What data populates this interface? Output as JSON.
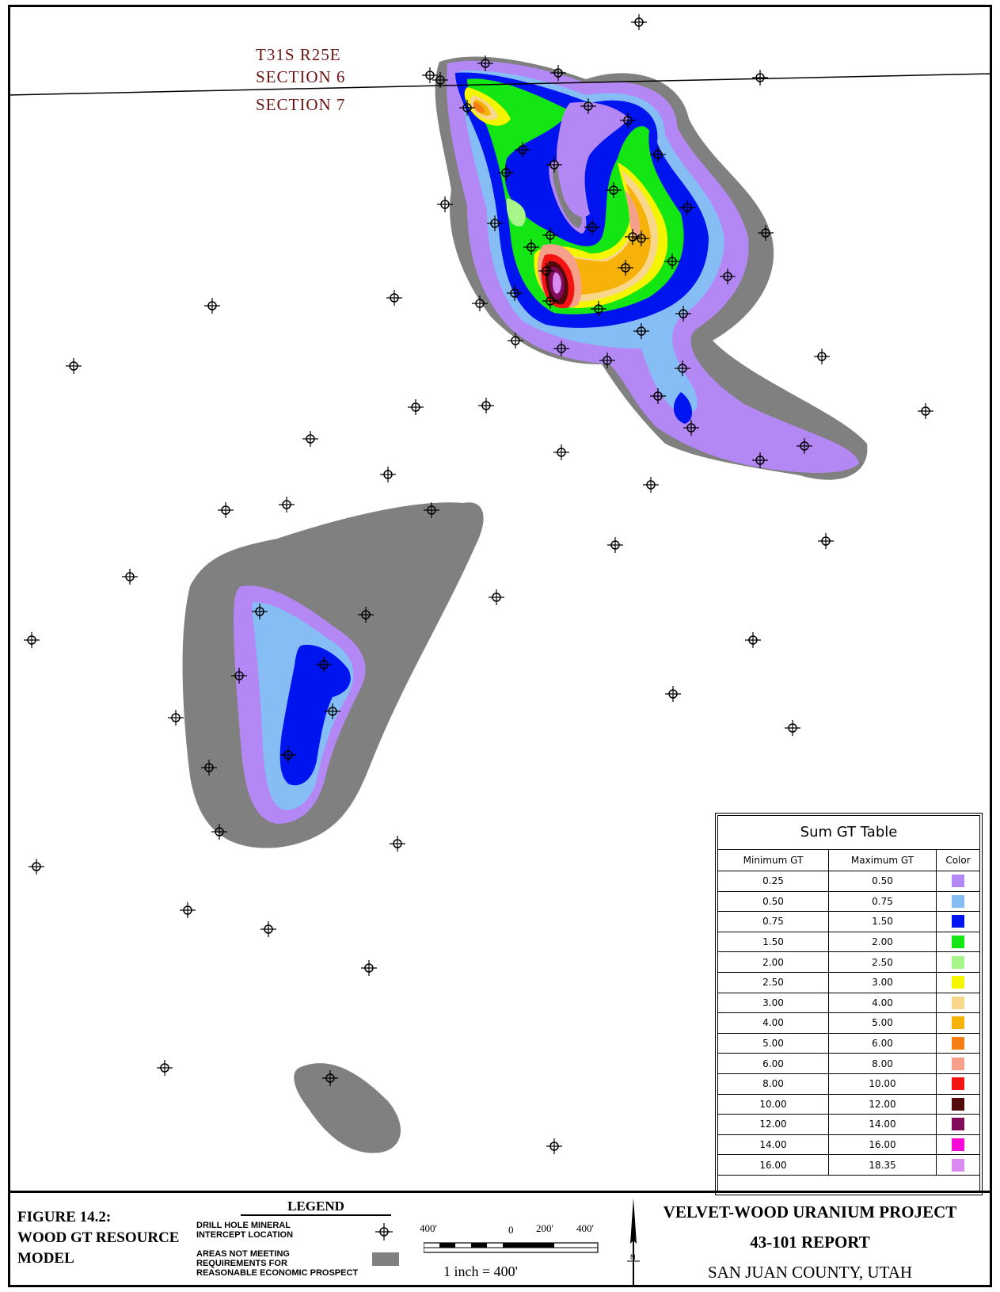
{
  "section_labels": {
    "township": "T31S R25E",
    "section_a": "SECTION 6",
    "section_b": "SECTION 7"
  },
  "gt_table": {
    "title": "Sum GT Table",
    "headers": [
      "Minimum GT",
      "Maximum GT",
      "Color"
    ],
    "rows": [
      {
        "min": "0.25",
        "max": "0.50",
        "color": "#b388f5"
      },
      {
        "min": "0.50",
        "max": "0.75",
        "color": "#87bdf5"
      },
      {
        "min": "0.75",
        "max": "1.50",
        "color": "#0014f0"
      },
      {
        "min": "1.50",
        "max": "2.00",
        "color": "#14e614"
      },
      {
        "min": "2.00",
        "max": "2.50",
        "color": "#a8f58a"
      },
      {
        "min": "2.50",
        "max": "3.00",
        "color": "#f5f500"
      },
      {
        "min": "3.00",
        "max": "4.00",
        "color": "#f8d68a"
      },
      {
        "min": "4.00",
        "max": "5.00",
        "color": "#f7b20a"
      },
      {
        "min": "5.00",
        "max": "6.00",
        "color": "#f57f14"
      },
      {
        "min": "6.00",
        "max": "8.00",
        "color": "#f5a08a"
      },
      {
        "min": "8.00",
        "max": "10.00",
        "color": "#f51414"
      },
      {
        "min": "10.00",
        "max": "12.00",
        "color": "#520a0a"
      },
      {
        "min": "12.00",
        "max": "14.00",
        "color": "#820a5a"
      },
      {
        "min": "14.00",
        "max": "16.00",
        "color": "#f50ad6"
      },
      {
        "min": "16.00",
        "max": "18.35",
        "color": "#d88af0"
      }
    ]
  },
  "bottom": {
    "figure_title": [
      "FIGURE 14.2:",
      "WOOD GT RESOURCE",
      "MODEL"
    ],
    "legend_title": "LEGEND",
    "legend_drill": [
      "DRILL HOLE MINERAL",
      "INTERCEPT LOCATION"
    ],
    "legend_areas": [
      "AREAS NOT MEETING",
      "REQUIREMENTS FOR",
      "REASONABLE ECONOMIC PROSPECT"
    ],
    "scale_labels": [
      "400'",
      "0",
      "200'",
      "400'"
    ],
    "scale_note": "1 inch  =   400'",
    "north_label": "N",
    "project": [
      "VELVET-WOOD URANIUM PROJECT",
      "43-101 REPORT",
      "SAN JUAN COUNTY, UTAH"
    ]
  },
  "colors": {
    "non_economic": "#808080",
    "section_label": "#6b1414"
  },
  "icons": [
    "drill-hole-icon",
    "north-arrow-icon"
  ]
}
